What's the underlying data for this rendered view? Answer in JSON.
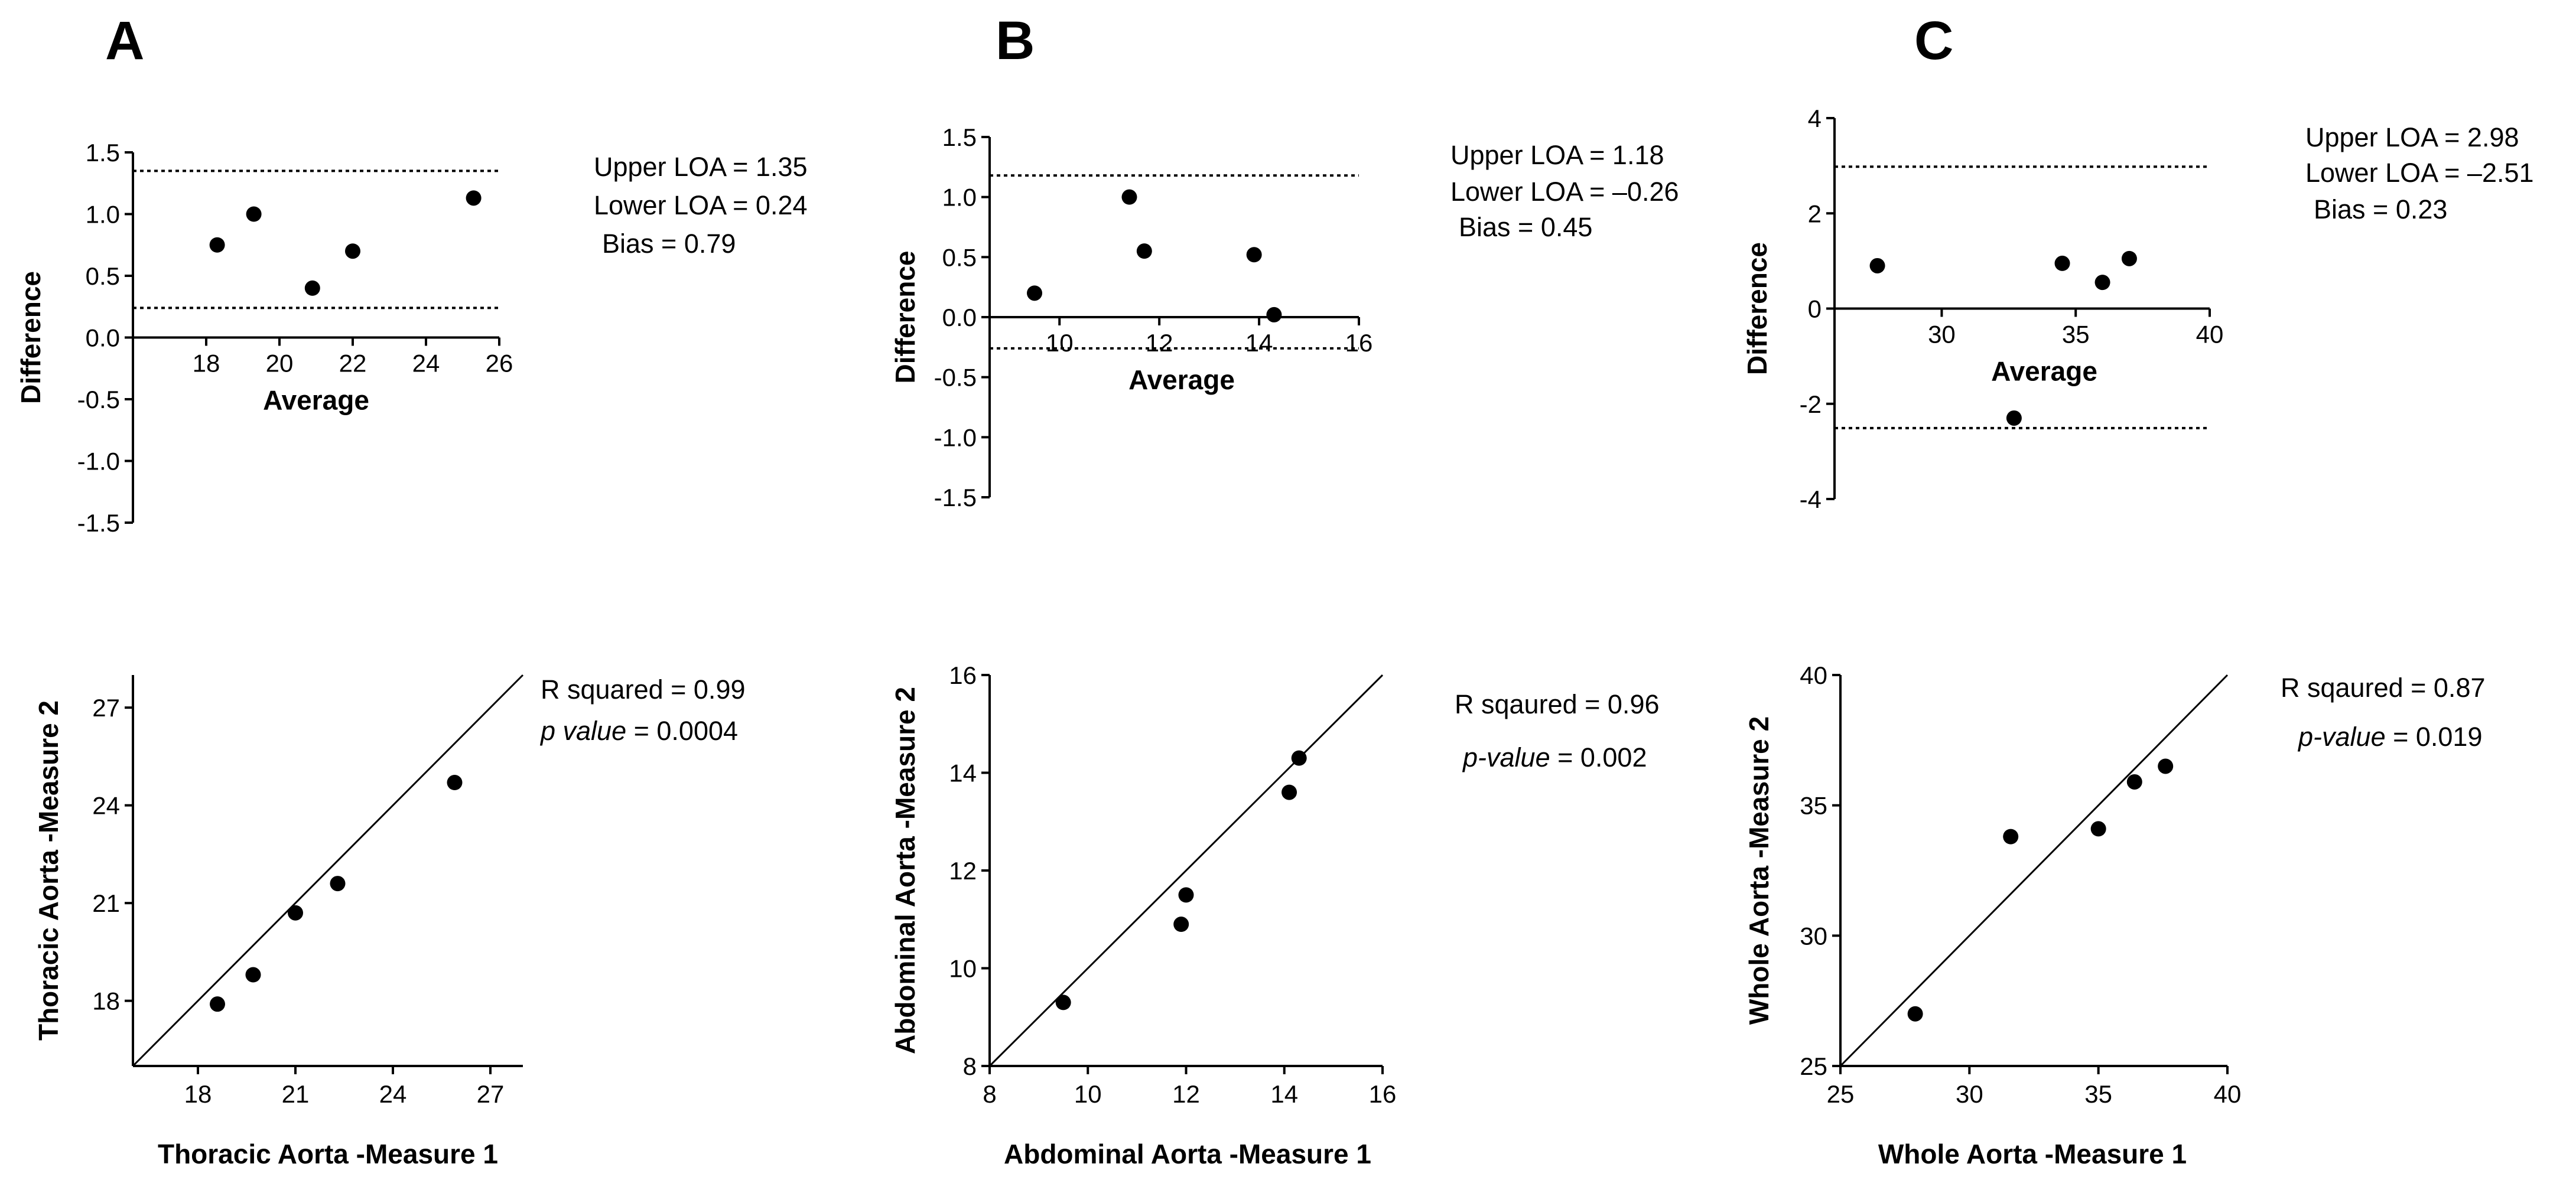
{
  "panels": [
    {
      "letter": "A",
      "bland_altman": {
        "type": "scatter",
        "xlabel": "Average",
        "ylabel": "Difference",
        "xlim": [
          16,
          26
        ],
        "ylim": [
          -1.5,
          1.5
        ],
        "xticks": [
          18,
          20,
          22,
          24,
          26
        ],
        "xtick_labels": [
          "18",
          "20",
          "22",
          "24",
          "26"
        ],
        "yticks": [
          1.5,
          1.0,
          0.5,
          0.0,
          -0.5,
          -1.0,
          -1.5
        ],
        "ytick_labels": [
          "1.5",
          "1.0",
          "0.5",
          "0.0",
          "-0.5",
          "-1.0",
          "-1.5"
        ],
        "points": [
          {
            "x": 18.3,
            "y": 0.75
          },
          {
            "x": 19.3,
            "y": 1.0
          },
          {
            "x": 20.9,
            "y": 0.4
          },
          {
            "x": 22.0,
            "y": 0.7
          },
          {
            "x": 25.3,
            "y": 1.13
          }
        ],
        "upper_loa": 1.35,
        "lower_loa": 0.24,
        "annotations": [
          "Upper LOA = 1.35",
          "Lower LOA = 0.24",
          "Bias = 0.79"
        ]
      },
      "correlation": {
        "type": "scatter",
        "xlabel": "Thoracic Aorta -Measure 1",
        "ylabel": "Thoracic Aorta -Measure 2",
        "xlim": [
          16,
          28
        ],
        "ylim": [
          16,
          28
        ],
        "xticks": [
          18,
          21,
          24,
          27
        ],
        "xtick_labels": [
          "18",
          "21",
          "24",
          "27"
        ],
        "yticks": [
          18,
          21,
          24,
          27
        ],
        "ytick_labels": [
          "18",
          "21",
          "24",
          "27"
        ],
        "points": [
          {
            "x": 18.6,
            "y": 17.9
          },
          {
            "x": 19.7,
            "y": 18.8
          },
          {
            "x": 21.0,
            "y": 20.7
          },
          {
            "x": 22.3,
            "y": 21.6
          },
          {
            "x": 25.9,
            "y": 24.7
          }
        ],
        "stat1": {
          "label": "R squared",
          "value": " = 0.99"
        },
        "stat2": {
          "label": "p value",
          "value": " = 0.0004"
        }
      }
    },
    {
      "letter": "B",
      "bland_altman": {
        "type": "scatter",
        "xlabel": "Average",
        "ylabel": "Difference",
        "xlim": [
          8.6,
          16
        ],
        "ylim": [
          -1.5,
          1.5
        ],
        "xticks": [
          10,
          12,
          14,
          16
        ],
        "xtick_labels": [
          "10",
          "12",
          "14",
          "16"
        ],
        "yticks": [
          1.5,
          1.0,
          0.5,
          0.0,
          -0.5,
          -1.0,
          -1.5
        ],
        "ytick_labels": [
          "1.5",
          "1.0",
          "0.5",
          "0.0",
          "-0.5",
          "-1.0",
          "-1.5"
        ],
        "points": [
          {
            "x": 9.5,
            "y": 0.2
          },
          {
            "x": 11.4,
            "y": 1.0
          },
          {
            "x": 11.7,
            "y": 0.55
          },
          {
            "x": 13.9,
            "y": 0.52
          },
          {
            "x": 14.3,
            "y": 0.02
          }
        ],
        "upper_loa": 1.18,
        "lower_loa": -0.26,
        "annotations": [
          "Upper LOA = 1.18",
          "Lower LOA = –0.26",
          "Bias = 0.45"
        ]
      },
      "correlation": {
        "type": "scatter",
        "xlabel": "Abdominal Aorta -Measure 1",
        "ylabel": "Abdominal Aorta -Measure 2",
        "xlim": [
          8,
          16
        ],
        "ylim": [
          8,
          16
        ],
        "xticks": [
          8,
          10,
          12,
          14,
          16
        ],
        "xtick_labels": [
          "8",
          "10",
          "12",
          "14",
          "16"
        ],
        "yticks": [
          8,
          10,
          12,
          14,
          16
        ],
        "ytick_labels": [
          "8",
          "10",
          "12",
          "14",
          "16"
        ],
        "points": [
          {
            "x": 9.5,
            "y": 9.3
          },
          {
            "x": 11.9,
            "y": 10.9
          },
          {
            "x": 12.0,
            "y": 11.5
          },
          {
            "x": 14.1,
            "y": 13.6
          },
          {
            "x": 14.3,
            "y": 14.3
          }
        ],
        "stat1": {
          "label": "R sqaured",
          "value": " = 0.96"
        },
        "stat2": {
          "label": "p-value",
          "value": " = 0.002"
        }
      }
    },
    {
      "letter": "C",
      "bland_altman": {
        "type": "scatter",
        "xlabel": "Average",
        "ylabel": "Difference",
        "xlim": [
          26,
          40
        ],
        "ylim": [
          -4,
          4
        ],
        "xticks": [
          30,
          35,
          40
        ],
        "xtick_labels": [
          "30",
          "35",
          "40"
        ],
        "yticks": [
          4,
          2,
          0,
          -2,
          -4
        ],
        "ytick_labels": [
          "4",
          "2",
          "0",
          "-2",
          "-4"
        ],
        "points": [
          {
            "x": 27.6,
            "y": 0.9
          },
          {
            "x": 32.7,
            "y": -2.3
          },
          {
            "x": 34.5,
            "y": 0.95
          },
          {
            "x": 36.0,
            "y": 0.55
          },
          {
            "x": 37.0,
            "y": 1.05
          }
        ],
        "upper_loa": 2.98,
        "lower_loa": -2.51,
        "annotations": [
          "Upper LOA = 2.98",
          "Lower LOA = –2.51",
          "Bias = 0.23"
        ]
      },
      "correlation": {
        "type": "scatter",
        "xlabel": "Whole Aorta -Measure 1",
        "ylabel": "Whole Aorta -Measure 2",
        "xlim": [
          25,
          40
        ],
        "ylim": [
          25,
          40
        ],
        "xticks": [
          25,
          30,
          35,
          40
        ],
        "xtick_labels": [
          "25",
          "30",
          "35",
          "40"
        ],
        "yticks": [
          25,
          30,
          35,
          40
        ],
        "ytick_labels": [
          "25",
          "30",
          "35",
          "40"
        ],
        "points": [
          {
            "x": 27.9,
            "y": 27.0
          },
          {
            "x": 31.6,
            "y": 33.8
          },
          {
            "x": 35.0,
            "y": 34.1
          },
          {
            "x": 36.4,
            "y": 35.9
          },
          {
            "x": 37.6,
            "y": 36.5
          }
        ],
        "stat1": {
          "label": "R sqaured",
          "value": " = 0.87"
        },
        "stat2": {
          "label": "p-value",
          "value": " = 0.019"
        }
      }
    }
  ],
  "chart_data": [
    {
      "type": "scatter",
      "panel": "A",
      "title": "",
      "xlabel": "Average",
      "ylabel": "Difference",
      "xlim": [
        16,
        26
      ],
      "ylim": [
        -1.5,
        1.5
      ],
      "x": [
        18.3,
        19.3,
        20.9,
        22.0,
        25.3
      ],
      "y": [
        0.75,
        1.0,
        0.4,
        0.7,
        1.13
      ],
      "reference_lines": {
        "upper_loa": 1.35,
        "lower_loa": 0.24,
        "bias": 0.79
      }
    },
    {
      "type": "scatter",
      "panel": "A",
      "title": "",
      "xlabel": "Thoracic Aorta -Measure 1",
      "ylabel": "Thoracic Aorta -Measure 2",
      "xlim": [
        16,
        28
      ],
      "ylim": [
        16,
        28
      ],
      "x": [
        18.6,
        19.7,
        21.0,
        22.3,
        25.9
      ],
      "y": [
        17.9,
        18.8,
        20.7,
        21.6,
        24.7
      ],
      "r_squared": 0.99,
      "p_value": 0.0004,
      "identity_line": true
    },
    {
      "type": "scatter",
      "panel": "B",
      "title": "",
      "xlabel": "Average",
      "ylabel": "Difference",
      "xlim": [
        8.6,
        16
      ],
      "ylim": [
        -1.5,
        1.5
      ],
      "x": [
        9.5,
        11.4,
        11.7,
        13.9,
        14.3
      ],
      "y": [
        0.2,
        1.0,
        0.55,
        0.52,
        0.02
      ],
      "reference_lines": {
        "upper_loa": 1.18,
        "lower_loa": -0.26,
        "bias": 0.45
      }
    },
    {
      "type": "scatter",
      "panel": "B",
      "title": "",
      "xlabel": "Abdominal Aorta -Measure 1",
      "ylabel": "Abdominal Aorta -Measure 2",
      "xlim": [
        8,
        16
      ],
      "ylim": [
        8,
        16
      ],
      "x": [
        9.5,
        11.9,
        12.0,
        14.1,
        14.3
      ],
      "y": [
        9.3,
        10.9,
        11.5,
        13.6,
        14.3
      ],
      "r_squared": 0.96,
      "p_value": 0.002,
      "identity_line": true
    },
    {
      "type": "scatter",
      "panel": "C",
      "title": "",
      "xlabel": "Average",
      "ylabel": "Difference",
      "xlim": [
        26,
        40
      ],
      "ylim": [
        -4,
        4
      ],
      "x": [
        27.6,
        32.7,
        34.5,
        36.0,
        37.0
      ],
      "y": [
        0.9,
        -2.3,
        0.95,
        0.55,
        1.05
      ],
      "reference_lines": {
        "upper_loa": 2.98,
        "lower_loa": -2.51,
        "bias": 0.23
      }
    },
    {
      "type": "scatter",
      "panel": "C",
      "title": "",
      "xlabel": "Whole Aorta -Measure 1",
      "ylabel": "Whole Aorta -Measure 2",
      "xlim": [
        25,
        40
      ],
      "ylim": [
        25,
        40
      ],
      "x": [
        27.9,
        31.6,
        35.0,
        36.4,
        37.6
      ],
      "y": [
        27.0,
        33.8,
        34.1,
        35.9,
        36.5
      ],
      "r_squared": 0.87,
      "p_value": 0.019,
      "identity_line": true
    }
  ]
}
